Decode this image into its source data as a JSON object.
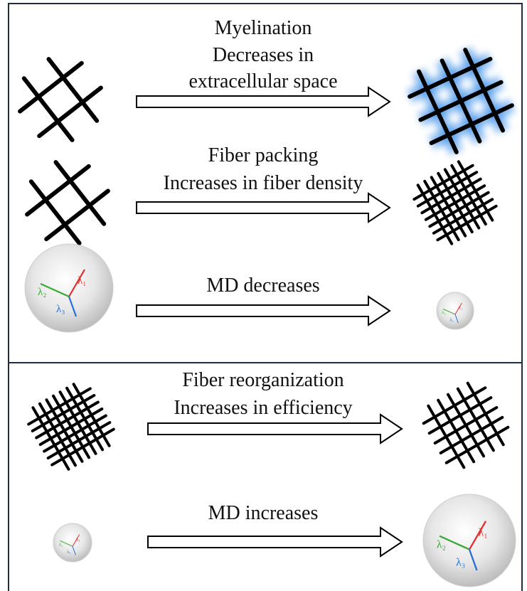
{
  "rows": [
    {
      "lines": [
        "Myelination",
        "Decreases in",
        "extracellular space"
      ]
    },
    {
      "lines": [
        "Fiber packing",
        "Increases in fiber density"
      ]
    },
    {
      "lines": [
        "MD decreases"
      ]
    },
    {
      "lines": [
        "Fiber reorganization",
        "Increases in efficiency"
      ]
    },
    {
      "lines": [
        "MD increases"
      ]
    }
  ],
  "lambda_labels": [
    "λ₁",
    "λ₂",
    "λ₃"
  ]
}
